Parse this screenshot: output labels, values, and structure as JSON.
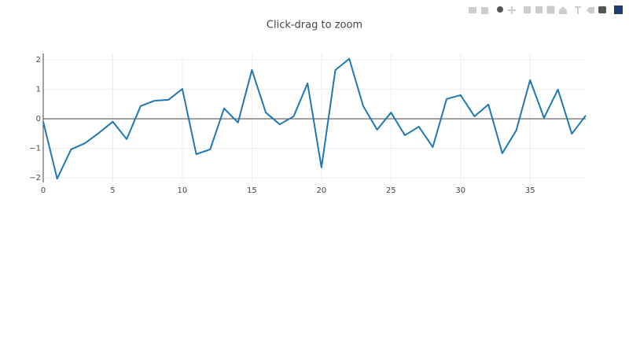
{
  "chart_data": {
    "type": "line",
    "title": "Click-drag to zoom",
    "x": [
      0,
      1,
      2,
      3,
      4,
      5,
      6,
      7,
      8,
      9,
      10,
      11,
      12,
      13,
      14,
      15,
      16,
      17,
      18,
      19,
      20,
      21,
      22,
      23,
      24,
      25,
      26,
      27,
      28,
      29,
      30,
      31,
      32,
      33,
      34,
      35,
      36,
      37,
      38,
      39
    ],
    "series": [
      {
        "color": "#1f77b4",
        "values": [
          -0.1,
          -2.03,
          -1.04,
          -0.83,
          -0.48,
          -0.1,
          -0.69,
          0.43,
          0.61,
          0.64,
          1.01,
          -1.2,
          -1.04,
          0.35,
          -0.13,
          1.65,
          0.21,
          -0.19,
          0.08,
          1.2,
          -1.65,
          1.65,
          2.03,
          0.43,
          -0.37,
          0.21,
          -0.56,
          -0.27,
          -0.96,
          0.67,
          0.8,
          0.08,
          0.48,
          -1.17,
          -0.4,
          1.31,
          0.03,
          0.99,
          -0.51,
          0.11
        ]
      }
    ],
    "xlim": [
      0,
      39
    ],
    "xticks": [
      0,
      5,
      10,
      15,
      20,
      25,
      30,
      35
    ],
    "ylim": [
      -2.16,
      2.21
    ],
    "yticks": [
      {
        "value": -2,
        "label": "−2"
      },
      {
        "value": -1,
        "label": "−1"
      },
      0,
      1,
      2
    ],
    "grid": true,
    "zeroline": true
  }
}
